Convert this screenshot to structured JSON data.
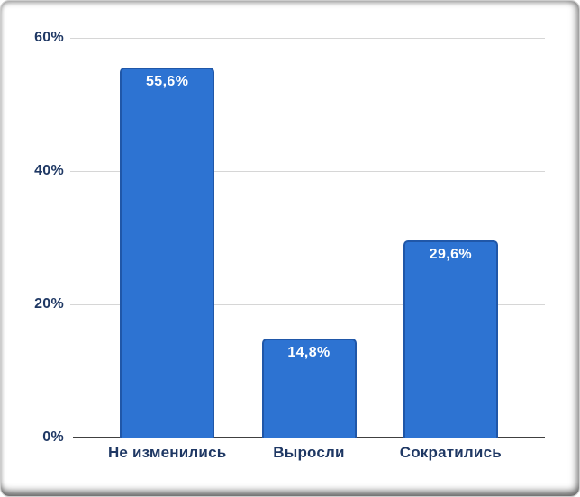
{
  "chart_data": {
    "type": "bar",
    "title": "",
    "categories": [
      "Не изменились",
      "Выросли",
      "Сократились"
    ],
    "values": [
      55.6,
      14.8,
      29.6
    ],
    "display_values": [
      "55,6%",
      "14,8%",
      "29,6%"
    ],
    "y_ticks": [
      0,
      20,
      40,
      60
    ],
    "y_tick_labels": [
      "0%",
      "20%",
      "40%",
      "60%"
    ],
    "ylim": [
      0,
      60
    ],
    "grid": true,
    "legend_position": "none",
    "colors": {
      "bar_fill": "#2D73D2",
      "bar_border": "#2057A8",
      "data_label": "#FFFFFF",
      "axis_text": "#1F3864",
      "gridline": "#D6D6D6",
      "axis_line": "#404040",
      "background": "#FFFFFF"
    }
  }
}
